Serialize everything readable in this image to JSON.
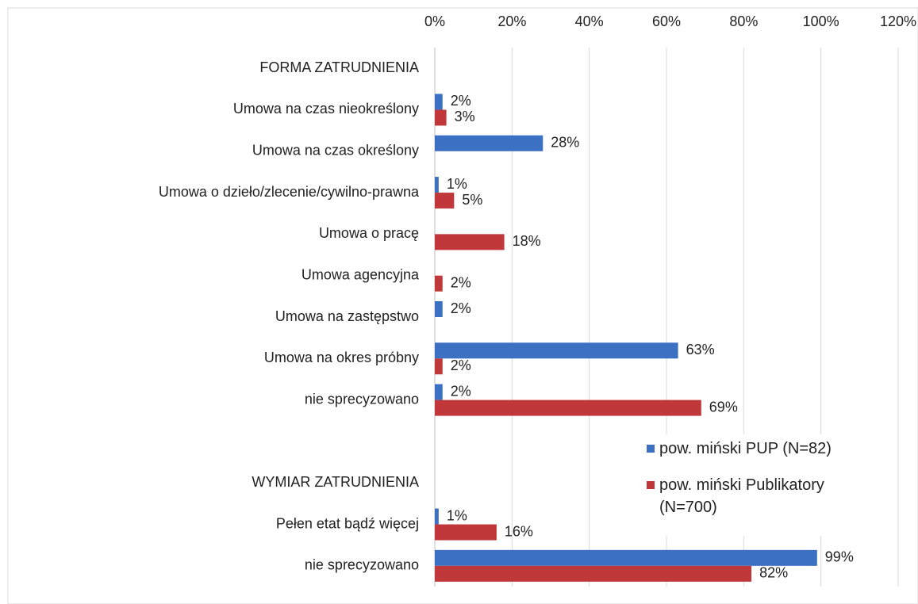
{
  "chart_data": {
    "type": "barh",
    "categories": [
      "FORMA ZATRUDNIENIA",
      "Umowa na czas nieokreślony",
      "Umowa na czas określony",
      "Umowa o dzieło/zlecenie/cywilno-prawna",
      "Umowa o pracę",
      "Umowa agencyjna",
      "Umowa na zastępstwo",
      "Umowa na okres próbny",
      "nie sprecyzowano",
      null,
      "WYMIAR ZATRUDNIENIA",
      "Pełen etat bądź więcej",
      "nie sprecyzowano"
    ],
    "series": [
      {
        "name": "pow. miński PUP (N=82)",
        "color": "#3b70c2",
        "values": [
          null,
          2,
          28,
          1,
          null,
          null,
          2,
          63,
          2,
          null,
          null,
          1,
          99
        ],
        "value_labels": [
          null,
          "2%",
          "28%",
          "1%",
          null,
          null,
          "2%",
          "63%",
          "2%",
          null,
          null,
          "1%",
          "99%"
        ]
      },
      {
        "name": "pow. miński Publikatory (N=700)",
        "color": "#c0383a",
        "values": [
          null,
          3,
          null,
          5,
          18,
          2,
          null,
          2,
          69,
          null,
          null,
          16,
          82
        ],
        "value_labels": [
          null,
          "3%",
          null,
          "5%",
          "18%",
          "2%",
          null,
          "2%",
          "69%",
          null,
          null,
          "16%",
          "82%"
        ]
      }
    ],
    "xlim": [
      0,
      120
    ],
    "xticks": [
      {
        "value": 0,
        "label": "0%"
      },
      {
        "value": 20,
        "label": "20%"
      },
      {
        "value": 40,
        "label": "40%"
      },
      {
        "value": 60,
        "label": "60%"
      },
      {
        "value": 80,
        "label": "80%"
      },
      {
        "value": 100,
        "label": "100%"
      },
      {
        "value": 120,
        "label": "120%"
      }
    ],
    "grid": true,
    "legend": "right"
  }
}
